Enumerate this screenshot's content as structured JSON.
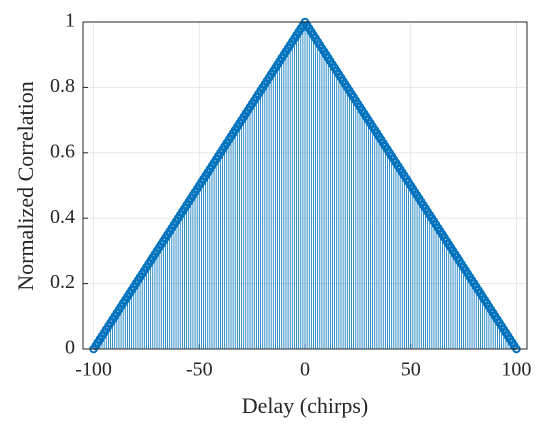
{
  "chart_data": {
    "type": "stem",
    "xlabel": "Delay (chirps)",
    "ylabel": "Normalized Correlation",
    "color": "#0072bd",
    "grid": true,
    "xlim": [
      -105,
      105
    ],
    "ylim": [
      0,
      1
    ],
    "xticks": [
      -100,
      -50,
      0,
      50,
      100
    ],
    "yticks": [
      0,
      0.2,
      0.4,
      0.6,
      0.8,
      1
    ],
    "x": [
      -100,
      -99,
      -98,
      -97,
      -96,
      -95,
      -94,
      -93,
      -92,
      -91,
      -90,
      -89,
      -88,
      -87,
      -86,
      -85,
      -84,
      -83,
      -82,
      -81,
      -80,
      -79,
      -78,
      -77,
      -76,
      -75,
      -74,
      -73,
      -72,
      -71,
      -70,
      -69,
      -68,
      -67,
      -66,
      -65,
      -64,
      -63,
      -62,
      -61,
      -60,
      -59,
      -58,
      -57,
      -56,
      -55,
      -54,
      -53,
      -52,
      -51,
      -50,
      -49,
      -48,
      -47,
      -46,
      -45,
      -44,
      -43,
      -42,
      -41,
      -40,
      -39,
      -38,
      -37,
      -36,
      -35,
      -34,
      -33,
      -32,
      -31,
      -30,
      -29,
      -28,
      -27,
      -26,
      -25,
      -24,
      -23,
      -22,
      -21,
      -20,
      -19,
      -18,
      -17,
      -16,
      -15,
      -14,
      -13,
      -12,
      -11,
      -10,
      -9,
      -8,
      -7,
      -6,
      -5,
      -4,
      -3,
      -2,
      -1,
      0,
      1,
      2,
      3,
      4,
      5,
      6,
      7,
      8,
      9,
      10,
      11,
      12,
      13,
      14,
      15,
      16,
      17,
      18,
      19,
      20,
      21,
      22,
      23,
      24,
      25,
      26,
      27,
      28,
      29,
      30,
      31,
      32,
      33,
      34,
      35,
      36,
      37,
      38,
      39,
      40,
      41,
      42,
      43,
      44,
      45,
      46,
      47,
      48,
      49,
      50,
      51,
      52,
      53,
      54,
      55,
      56,
      57,
      58,
      59,
      60,
      61,
      62,
      63,
      64,
      65,
      66,
      67,
      68,
      69,
      70,
      71,
      72,
      73,
      74,
      75,
      76,
      77,
      78,
      79,
      80,
      81,
      82,
      83,
      84,
      85,
      86,
      87,
      88,
      89,
      90,
      91,
      92,
      93,
      94,
      95,
      96,
      97,
      98,
      99,
      100
    ],
    "values": [
      0,
      0.01,
      0.02,
      0.03,
      0.04,
      0.05,
      0.06,
      0.07,
      0.08,
      0.09,
      0.1,
      0.11,
      0.12,
      0.13,
      0.14,
      0.15,
      0.16,
      0.17,
      0.18,
      0.19,
      0.2,
      0.21,
      0.22,
      0.23,
      0.24,
      0.25,
      0.26,
      0.27,
      0.28,
      0.29,
      0.3,
      0.31,
      0.32,
      0.33,
      0.34,
      0.35,
      0.36,
      0.37,
      0.38,
      0.39,
      0.4,
      0.41,
      0.42,
      0.43,
      0.44,
      0.45,
      0.46,
      0.47,
      0.48,
      0.49,
      0.5,
      0.51,
      0.52,
      0.53,
      0.54,
      0.55,
      0.56,
      0.57,
      0.58,
      0.59,
      0.6,
      0.61,
      0.62,
      0.63,
      0.64,
      0.65,
      0.66,
      0.67,
      0.68,
      0.69,
      0.7,
      0.71,
      0.72,
      0.73,
      0.74,
      0.75,
      0.76,
      0.77,
      0.78,
      0.79,
      0.8,
      0.81,
      0.82,
      0.83,
      0.84,
      0.85,
      0.86,
      0.87,
      0.88,
      0.89,
      0.9,
      0.91,
      0.92,
      0.93,
      0.94,
      0.95,
      0.96,
      0.97,
      0.98,
      0.99,
      1,
      0.99,
      0.98,
      0.97,
      0.96,
      0.95,
      0.94,
      0.93,
      0.92,
      0.91,
      0.9,
      0.89,
      0.88,
      0.87,
      0.86,
      0.85,
      0.84,
      0.83,
      0.82,
      0.81,
      0.8,
      0.79,
      0.78,
      0.77,
      0.76,
      0.75,
      0.74,
      0.73,
      0.72,
      0.71,
      0.7,
      0.69,
      0.68,
      0.67,
      0.66,
      0.65,
      0.64,
      0.63,
      0.62,
      0.61,
      0.6,
      0.59,
      0.58,
      0.57,
      0.56,
      0.55,
      0.54,
      0.53,
      0.52,
      0.51,
      0.5,
      0.49,
      0.48,
      0.47,
      0.46,
      0.45,
      0.44,
      0.43,
      0.42,
      0.41,
      0.4,
      0.39,
      0.38,
      0.37,
      0.36,
      0.35,
      0.34,
      0.33,
      0.32,
      0.31,
      0.3,
      0.29,
      0.28,
      0.27,
      0.26,
      0.25,
      0.24,
      0.23,
      0.22,
      0.21,
      0.2,
      0.19,
      0.18,
      0.17,
      0.16,
      0.15,
      0.14,
      0.13,
      0.12,
      0.11,
      0.1,
      0.09,
      0.08,
      0.07,
      0.06,
      0.05,
      0.04,
      0.03,
      0.02,
      0.01,
      0
    ]
  }
}
